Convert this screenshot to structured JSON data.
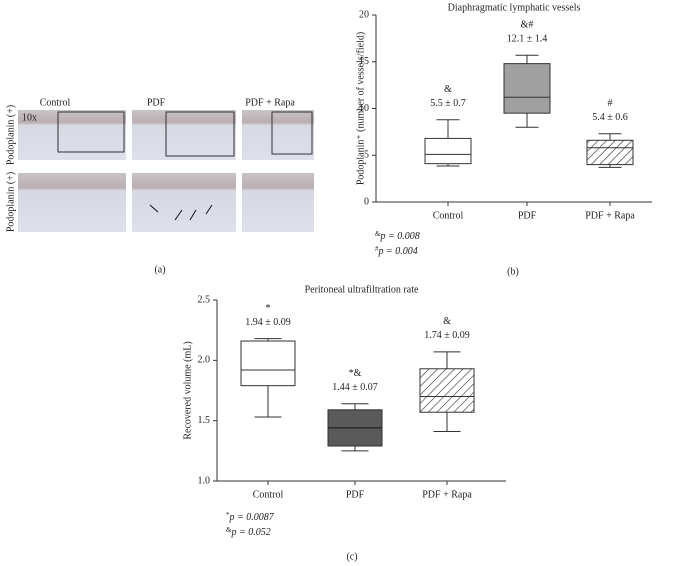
{
  "image_panel": {
    "label": "(a)",
    "columns": [
      "Control",
      "PDF",
      "PDF + Rapa"
    ],
    "row_labels": [
      "Podoplanin (+)",
      "Podoplanin (+)"
    ],
    "magnification": "10x"
  },
  "chart_data": [
    {
      "type": "box",
      "panel_label": "(b)",
      "title": "Diaphragmatic lymphatic vessels",
      "ylabel": "Podoplanin⁺ (number of vessels/field)",
      "categories": [
        "Control",
        "PDF",
        "PDF + Rapa"
      ],
      "min": [
        3.85,
        8.0,
        3.7
      ],
      "q1": [
        4.1,
        9.5,
        4.0
      ],
      "median": [
        5.1,
        11.2,
        5.8
      ],
      "q3": [
        6.8,
        14.8,
        6.6
      ],
      "max": [
        8.8,
        15.7,
        7.3
      ],
      "fills": [
        "#ffffff",
        "#a0a0a0",
        "hatch"
      ],
      "annotation_symbols": [
        "&",
        "&#",
        "#"
      ],
      "annotations": [
        "5.5 ± 0.7",
        "12.1 ± 1.4",
        "5.4 ± 0.6"
      ],
      "footnotes": [
        {
          "symbol": "&",
          "text": "p = 0.008"
        },
        {
          "symbol": "#",
          "text": "p = 0.004"
        }
      ],
      "ylim": [
        0,
        20
      ],
      "yticks": [
        0,
        5,
        10,
        15,
        20
      ]
    },
    {
      "type": "box",
      "panel_label": "(c)",
      "title": "Peritoneal ultrafiltration rate",
      "ylabel": "Recovered volume (mL)",
      "categories": [
        "Control",
        "PDF",
        "PDF + Rapa"
      ],
      "min": [
        1.53,
        1.25,
        1.41
      ],
      "q1": [
        1.79,
        1.29,
        1.57
      ],
      "median": [
        1.92,
        1.44,
        1.7
      ],
      "q3": [
        2.16,
        1.59,
        1.93
      ],
      "max": [
        2.18,
        1.64,
        2.07
      ],
      "fills": [
        "#ffffff",
        "#5a5a5a",
        "hatch"
      ],
      "annotation_symbols": [
        "*",
        "*&",
        "&"
      ],
      "annotations": [
        "1.94 ± 0.09",
        "1.44 ± 0.07",
        "1.74 ± 0.09"
      ],
      "footnotes": [
        {
          "symbol": "*",
          "text": "p = 0.0087"
        },
        {
          "symbol": "&",
          "text": "p = 0.052"
        }
      ],
      "ylim": [
        1.0,
        2.5
      ],
      "yticks": [
        {
          "value": 1.0,
          "label": "1.0"
        },
        1.5,
        {
          "value": 2.0,
          "label": "2.0"
        },
        2.5
      ]
    }
  ]
}
